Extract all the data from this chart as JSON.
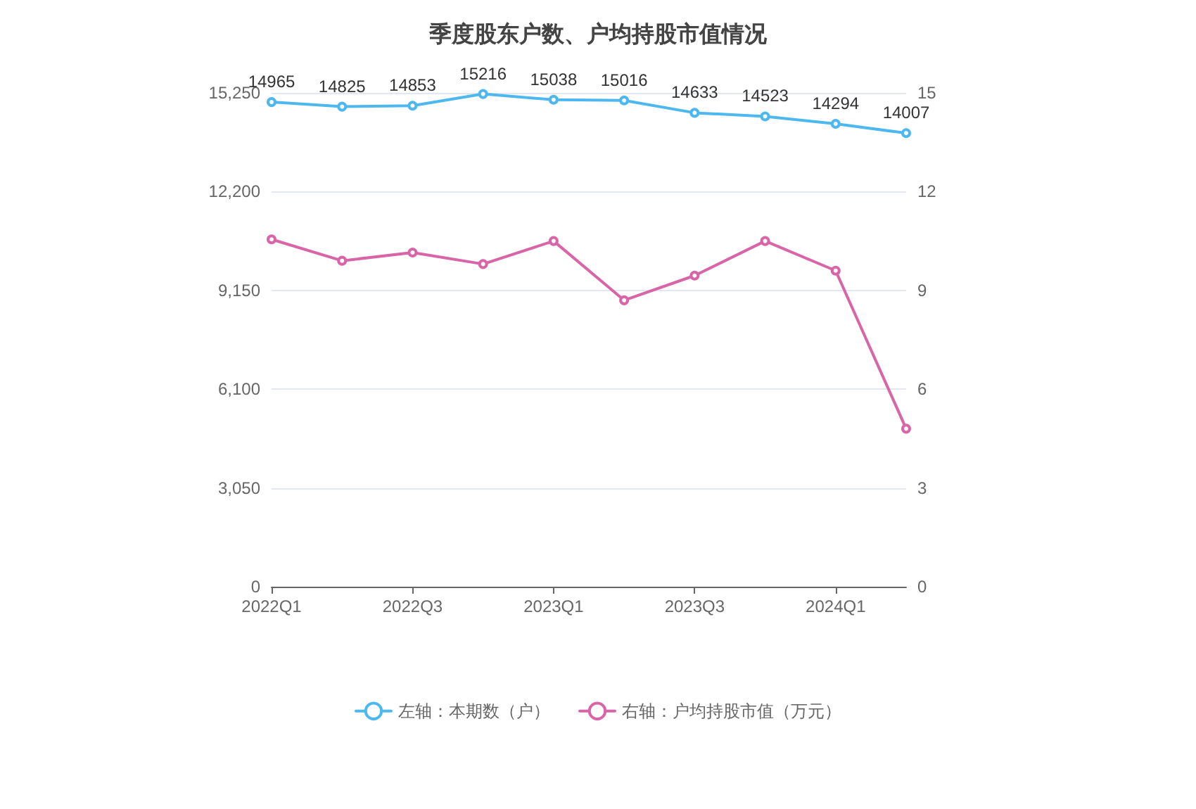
{
  "chart_data": {
    "type": "line",
    "title": "季度股东户数、户均持股市值情况",
    "categories": [
      "2022Q1",
      null,
      "2022Q3",
      null,
      "2023Q1",
      null,
      "2023Q3",
      null,
      "2024Q1",
      null
    ],
    "series": [
      {
        "name": "左轴：本期数（户）",
        "color": "#4db8f0",
        "values": [
          14965,
          14825,
          14853,
          15216,
          15038,
          15016,
          14633,
          14523,
          14294,
          14007
        ],
        "value_labels": [
          "14965",
          "14825",
          "14853",
          "15216",
          "15038",
          "15016",
          "14633",
          "14523",
          "14294",
          "14007"
        ]
      },
      {
        "name": "右轴：户均持股市值（万元）",
        "color": "#d965a8",
        "axis": "y2",
        "values": [
          10.55,
          9.9,
          10.15,
          9.8,
          10.5,
          8.7,
          9.45,
          10.5,
          9.6,
          4.8
        ]
      }
    ],
    "ylim": [
      0,
      15250
    ],
    "yticks": [
      0,
      {
        "value": 3050,
        "label": "3,050"
      },
      {
        "value": 6100,
        "label": "6,100"
      },
      {
        "value": 9150,
        "label": "9,150"
      },
      {
        "value": 12200,
        "label": "12,200"
      },
      {
        "value": 15250,
        "label": "15,250"
      }
    ],
    "y2lim": [
      0,
      15
    ],
    "y2ticks": [
      0,
      3,
      6,
      9,
      12,
      15
    ],
    "grid": "y",
    "legend": "bottom",
    "marker": "circle",
    "line_style": "solid"
  }
}
